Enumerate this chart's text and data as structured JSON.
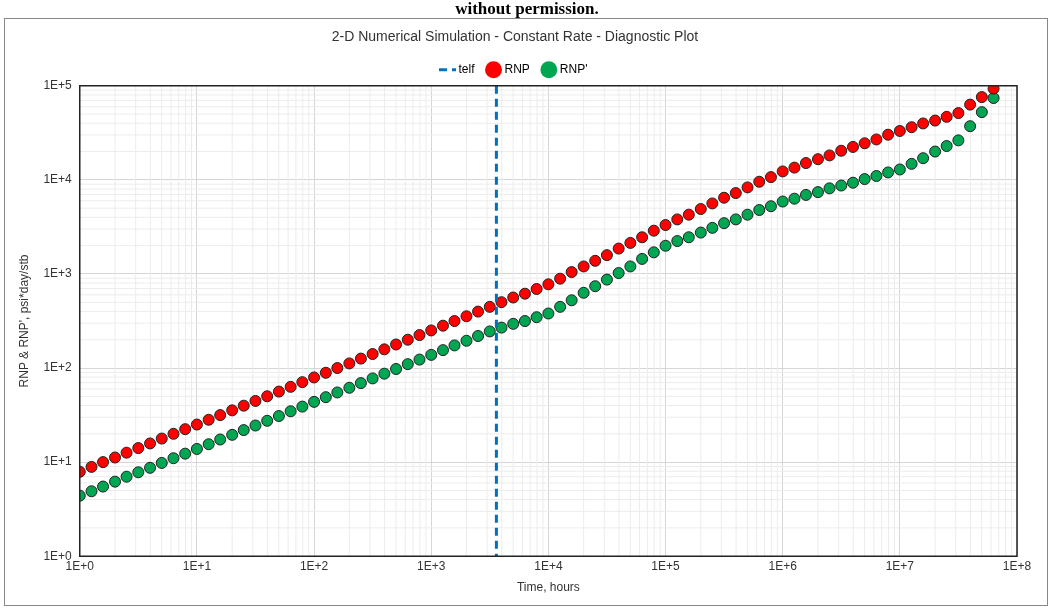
{
  "chart_data": {
    "type": "scatter",
    "title": "2-D Numerical Simulation - Constant Rate - Diagnostic Plot",
    "xlabel": "Time, hours",
    "ylabel": "RNP & RNP', psi*day/stb",
    "annotations": [
      "without permission."
    ],
    "x": [
      1,
      1.26,
      1.58,
      2,
      2.51,
      3.16,
      3.98,
      5.01,
      6.31,
      7.94,
      10,
      12.6,
      15.8,
      20,
      25.1,
      31.6,
      39.8,
      50.1,
      63.1,
      79.4,
      100,
      126,
      158,
      200,
      251,
      316,
      398,
      501,
      631,
      794,
      1000,
      1260,
      1580,
      2000,
      2510,
      3160,
      3980,
      5010,
      6310,
      7940,
      10000,
      12600,
      15800,
      20000,
      25100,
      31600,
      39800,
      50100,
      63100,
      79400,
      100000,
      126000,
      158000,
      200000,
      251000,
      316000,
      398000,
      501000,
      631000,
      794000,
      1000000,
      1260000,
      1580000,
      2000000,
      2510000,
      3160000,
      3980000,
      5010000,
      6310000,
      7940000,
      10000000,
      12600000,
      15800000,
      20000000,
      25100000,
      31600000,
      39800000,
      50100000,
      63100000
    ],
    "series": [
      {
        "name": "RNP",
        "color": "#ff0000",
        "values": [
          7.9,
          8.9,
          10,
          11.2,
          12.6,
          14.1,
          15.8,
          17.8,
          20,
          22.4,
          25.1,
          28.2,
          31.6,
          35.5,
          39.8,
          44.7,
          50.1,
          56.2,
          63.1,
          70.8,
          79.4,
          89.1,
          100,
          112,
          126,
          141,
          158,
          178,
          200,
          224,
          251,
          282,
          316,
          355,
          398,
          447,
          501,
          562,
          617,
          692,
          776,
          891,
          1047,
          1202,
          1380,
          1585,
          1862,
          2138,
          2455,
          2884,
          3311,
          3800,
          4270,
          4900,
          5620,
          6460,
          7240,
          8320,
          9550,
          10700,
          12300,
          13500,
          15100,
          16600,
          18200,
          20400,
          22400,
          24500,
          26900,
          30200,
          33100,
          36300,
          39800,
          42700,
          46800,
          51300,
          63100,
          75900,
          93300
        ]
      },
      {
        "name": "RNP'",
        "color": "#00a651",
        "values": [
          4.4,
          4.9,
          5.5,
          6.2,
          7,
          7.8,
          8.7,
          9.8,
          11,
          12.3,
          13.8,
          15.5,
          17.4,
          19.5,
          21.9,
          24.5,
          27.5,
          30.9,
          34.7,
          38.9,
          43.7,
          49,
          55,
          61.7,
          69.2,
          77.6,
          87.1,
          97.7,
          110,
          123,
          138,
          155,
          174,
          195,
          219,
          245,
          269,
          295,
          316,
          347,
          380,
          447,
          525,
          631,
          741,
          871,
          1023,
          1202,
          1445,
          1698,
          1995,
          2239,
          2455,
          2754,
          3090,
          3467,
          3802,
          4266,
          4786,
          5248,
          5888,
          6310,
          6918,
          7413,
          8128,
          8710,
          9333,
          10200,
          11000,
          12000,
          12900,
          14800,
          17000,
          20000,
          22900,
          26300,
          37200,
          52500,
          74100
        ]
      }
    ],
    "ref_lines": [
      {
        "axis": "x",
        "value": 3600,
        "label": "telf",
        "color": "#0070c0",
        "line_style": "dashed"
      }
    ],
    "log": "xy",
    "xlim": [
      1,
      100000000
    ],
    "ylim": [
      1,
      100000
    ],
    "xticks": [
      {
        "value": 1,
        "label": "1E+0"
      },
      {
        "value": 10,
        "label": "1E+1"
      },
      {
        "value": 100,
        "label": "1E+2"
      },
      {
        "value": 1000,
        "label": "1E+3"
      },
      {
        "value": 10000,
        "label": "1E+4"
      },
      {
        "value": 100000,
        "label": "1E+5"
      },
      {
        "value": 1000000,
        "label": "1E+6"
      },
      {
        "value": 10000000,
        "label": "1E+7"
      },
      {
        "value": 100000000,
        "label": "1E+8"
      }
    ],
    "yticks": [
      {
        "value": 1,
        "label": "1E+0"
      },
      {
        "value": 10,
        "label": "1E+1"
      },
      {
        "value": 100,
        "label": "1E+2"
      },
      {
        "value": 1000,
        "label": "1E+3"
      },
      {
        "value": 10000,
        "label": "1E+4"
      },
      {
        "value": 100000,
        "label": "1E+5"
      }
    ],
    "grid": true,
    "legend": "top",
    "marker": "circle"
  }
}
